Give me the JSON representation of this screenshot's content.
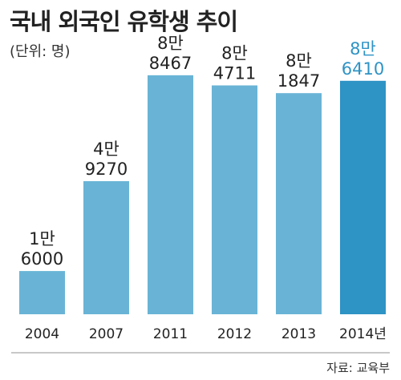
{
  "title": "국내 외국인 유학생 추이",
  "unit": "(단위: 명)",
  "source": "자료: 교육부",
  "chart_data": {
    "type": "bar",
    "categories": [
      "2004",
      "2007",
      "2011",
      "2012",
      "2013",
      "2014년"
    ],
    "values": [
      16000,
      49270,
      88467,
      84711,
      81847,
      86410
    ],
    "labels": [
      [
        "1만",
        "6000"
      ],
      [
        "4만",
        "9270"
      ],
      [
        "8만",
        "8467"
      ],
      [
        "8만",
        "4711"
      ],
      [
        "8만",
        "1847"
      ],
      [
        "8만",
        "6410"
      ]
    ],
    "ylim": [
      0,
      100000
    ],
    "grid": false,
    "colors": {
      "bar": "#69b4d6",
      "highlight_bar": "#2e93c5",
      "label": "#222222",
      "highlight_label": "#2e93c5",
      "baseline": "#b5b5b5"
    },
    "highlight_index": 5
  }
}
